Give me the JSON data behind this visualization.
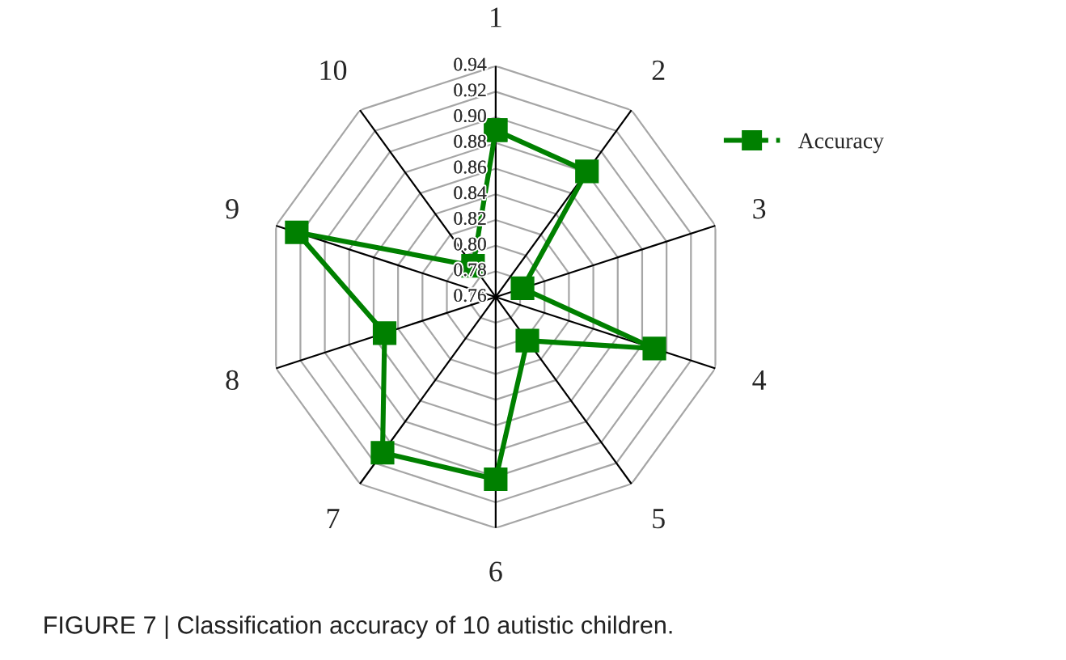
{
  "chart_data": {
    "type": "radar",
    "categories": [
      "1",
      "2",
      "3",
      "4",
      "5",
      "6",
      "7",
      "8",
      "9",
      "10"
    ],
    "series": [
      {
        "name": "Accuracy",
        "color": "#008000",
        "values": [
          0.89,
          0.881,
          0.782,
          0.89,
          0.802,
          0.902,
          0.91,
          0.851,
          0.923,
          0.79
        ]
      }
    ],
    "ylim": [
      0.76,
      0.94
    ],
    "yticks": [
      {
        "value": 0.76,
        "label": "0.76"
      },
      {
        "value": 0.78,
        "label": "0.78"
      },
      {
        "value": 0.8,
        "label": "0.80"
      },
      {
        "value": 0.82,
        "label": "0.82"
      },
      {
        "value": 0.84,
        "label": "0.84"
      },
      {
        "value": 0.86,
        "label": "0.86"
      },
      {
        "value": 0.88,
        "label": "0.88"
      },
      {
        "value": 0.9,
        "label": "0.90"
      },
      {
        "value": 0.92,
        "label": "0.92"
      },
      {
        "value": 0.94,
        "label": "0.94"
      }
    ],
    "grid": true,
    "legend": "top right",
    "marker": "square",
    "line_style": "solid",
    "annotations": [
      "FIGURE 7 | Classification accuracy of 10 autistic children."
    ]
  }
}
